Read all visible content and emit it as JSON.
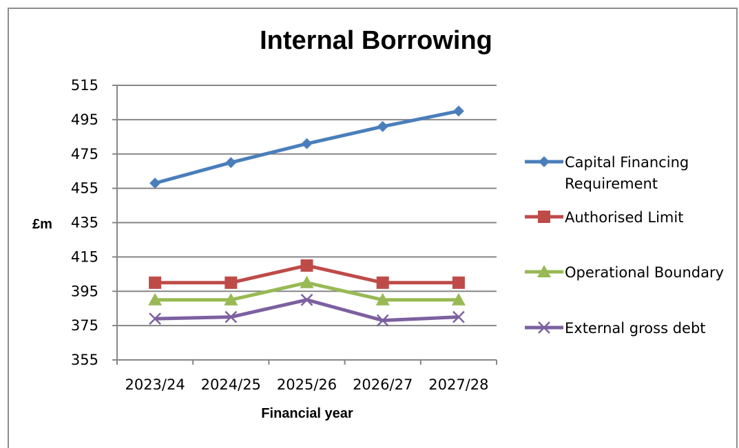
{
  "chart_data": {
    "type": "line",
    "title": "Internal Borrowing",
    "xlabel": "Financial year",
    "ylabel": "£m",
    "categories": [
      "2023/24",
      "2024/25",
      "2025/26",
      "2026/27",
      "2027/28"
    ],
    "ylim": [
      355,
      515
    ],
    "yticks": [
      355,
      375,
      395,
      415,
      435,
      455,
      475,
      495,
      515
    ],
    "grid": true,
    "legend_position": "right",
    "series": [
      {
        "name": "Capital Financing Requirement",
        "values": [
          458,
          470,
          481,
          491,
          500
        ],
        "color": "#4a7ebb",
        "marker": "diamond"
      },
      {
        "name": "Authorised Limit",
        "values": [
          400,
          400,
          410,
          400,
          400
        ],
        "color": "#be4b48",
        "marker": "square"
      },
      {
        "name": "Operational Boundary",
        "values": [
          390,
          390,
          400,
          390,
          390
        ],
        "color": "#98b954",
        "marker": "triangle"
      },
      {
        "name": "External gross debt",
        "values": [
          379,
          380,
          390,
          378,
          380
        ],
        "color": "#7d60a0",
        "marker": "x"
      }
    ],
    "legend_lines": [
      [
        "Capital Financing",
        "Requirement"
      ],
      [
        "Authorised Limit"
      ],
      [
        "Operational Boundary"
      ],
      [
        "External gross debt"
      ]
    ]
  }
}
